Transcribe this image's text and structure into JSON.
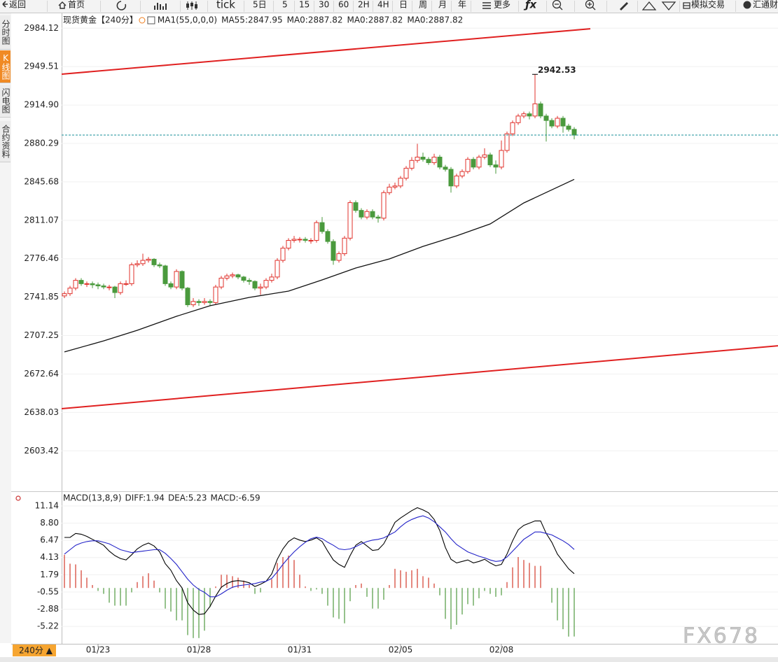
{
  "toolbar": {
    "items": [
      "返回",
      "首页",
      "tick",
      "5日",
      "5",
      "15",
      "30",
      "60",
      "2H",
      "4H",
      "日",
      "周",
      "月",
      "年",
      "更多",
      "ƒx",
      "模拟交易",
      "汇通财"
    ]
  },
  "sidebar": {
    "tabs": [
      "分时图",
      "K线图",
      "闪电图",
      "合约资料"
    ],
    "active": 1
  },
  "watermark": "FX678",
  "chart_data": [
    {
      "type": "candlestick",
      "title": "现货黄金",
      "period": "【240分】",
      "period_color": "#f07d1a",
      "indicator": "MA1(55,0,0,0)",
      "up_color": "#e0312b",
      "down_color": "#4a9a3d",
      "last_price_color": "#1a8f9a",
      "max_label_color": "#d9302a",
      "grid": true,
      "xlim": [
        -0.5,
        127.375
      ],
      "ylim": [
        2568.3,
        2996.9
      ],
      "yticks": [
        2984.12,
        2949.51,
        {
          "value": 2914.9,
          "label": "2914.90"
        },
        2880.29,
        2845.68,
        2811.07,
        2776.46,
        2741.85,
        2707.25,
        2672.64,
        2638.03,
        2603.42
      ],
      "open": [
        2743,
        2745,
        2750,
        2757,
        2754,
        2754,
        2753,
        2752,
        2751,
        2751,
        2746,
        2754,
        2754,
        2771,
        2772,
        2775,
        2776,
        2771,
        2770,
        2754,
        2751,
        2765,
        2750,
        2735,
        2738,
        2737,
        2738,
        2737,
        2751,
        2759,
        2761,
        2762,
        2760,
        2757,
        2756,
        2750,
        2751,
        2757,
        2760,
        2775,
        2786,
        2793,
        2794,
        2794,
        2793,
        2793,
        2809,
        2801,
        2792,
        2775,
        2781,
        2795,
        2827,
        2820,
        2814,
        2819,
        2814,
        2813,
        2836,
        2841,
        2842,
        2849,
        2858,
        2865,
        2868,
        2866,
        2863,
        2868,
        2859,
        2857,
        2842,
        2851,
        2855,
        2866,
        2859,
        2868,
        2870,
        2861,
        2859,
        2874,
        2889,
        2899,
        2905,
        2907,
        2905,
        2916,
        2905,
        2901,
        2896,
        2903,
        2896,
        2893
      ],
      "high": [
        2747,
        2752,
        2759,
        2759,
        2756,
        2756,
        2755,
        2754,
        2753,
        2752,
        2756,
        2757,
        2773,
        2775,
        2781,
        2778,
        2777,
        2773,
        2771,
        2756,
        2767,
        2766,
        2751,
        2741,
        2740,
        2741,
        2740,
        2753,
        2761,
        2763,
        2764,
        2763,
        2761,
        2759,
        2757,
        2754,
        2759,
        2763,
        2777,
        2788,
        2795,
        2797,
        2796,
        2796,
        2795,
        2811,
        2814,
        2803,
        2794,
        2783,
        2797,
        2829,
        2829,
        2822,
        2821,
        2821,
        2816,
        2838,
        2844,
        2845,
        2851,
        2860,
        2868,
        2880,
        2872,
        2868,
        2871,
        2870,
        2861,
        2859,
        2853,
        2857,
        2868,
        2868,
        2870,
        2876,
        2872,
        2865,
        2883,
        2891,
        2901,
        2907,
        2909,
        2909,
        2942.53,
        2918,
        2907,
        2903,
        2905,
        2905,
        2898,
        2895
      ],
      "low": [
        2741,
        2743,
        2748,
        2752,
        2751,
        2750,
        2749,
        2749,
        2748,
        2741,
        2744,
        2752,
        2752,
        2769,
        2770,
        2773,
        2769,
        2768,
        2752,
        2749,
        2749,
        2748,
        2733,
        2733,
        2734,
        2735,
        2734,
        2735,
        2749,
        2757,
        2759,
        2758,
        2755,
        2753,
        2748,
        2744,
        2749,
        2755,
        2758,
        2773,
        2784,
        2791,
        2791,
        2791,
        2790,
        2791,
        2799,
        2790,
        2771,
        2773,
        2779,
        2793,
        2818,
        2812,
        2812,
        2812,
        2809,
        2811,
        2834,
        2839,
        2840,
        2847,
        2856,
        2863,
        2864,
        2861,
        2861,
        2857,
        2855,
        2836,
        2840,
        2849,
        2853,
        2857,
        2857,
        2866,
        2859,
        2853,
        2857,
        2872,
        2887,
        2897,
        2903,
        2902,
        2903,
        2903,
        2882,
        2894,
        2894,
        2890,
        2891,
        2884
      ],
      "close": [
        2745,
        2750,
        2757,
        2754,
        2754,
        2753,
        2752,
        2751,
        2751,
        2746,
        2754,
        2754,
        2771,
        2772,
        2775,
        2776,
        2771,
        2770,
        2754,
        2751,
        2765,
        2750,
        2735,
        2738,
        2737,
        2738,
        2737,
        2751,
        2759,
        2761,
        2762,
        2760,
        2757,
        2756,
        2750,
        2751,
        2757,
        2760,
        2775,
        2786,
        2793,
        2794,
        2794,
        2793,
        2793,
        2809,
        2801,
        2792,
        2775,
        2781,
        2795,
        2827,
        2820,
        2814,
        2819,
        2814,
        2813,
        2836,
        2841,
        2842,
        2849,
        2858,
        2865,
        2868,
        2866,
        2863,
        2868,
        2859,
        2857,
        2842,
        2851,
        2855,
        2866,
        2859,
        2868,
        2870,
        2861,
        2859,
        2874,
        2889,
        2899,
        2905,
        2907,
        2905,
        2916,
        2905,
        2901,
        2896,
        2903,
        2896,
        2893,
        2887.82
      ],
      "series": [
        {
          "name": "MA55:2847.95",
          "color": "#111111",
          "x": [
            0,
            7,
            13,
            20,
            26,
            33,
            40,
            46,
            52,
            58,
            64,
            70,
            76,
            82,
            91
          ],
          "values": [
            2692.5,
            2702.5,
            2712.0,
            2724.6,
            2734.1,
            2741.6,
            2747.3,
            2757.4,
            2768.1,
            2776.3,
            2787.6,
            2797.1,
            2807.8,
            2826.7,
            2847.95
          ]
        }
      ],
      "extra_legend": [
        {
          "name": "MA0:2887.82",
          "color": "#2b2bd6"
        },
        {
          "name": "MA0:2887.82",
          "color": "#e020e0"
        },
        {
          "name": "MA0:2887.82",
          "color": "#f0a030"
        }
      ],
      "trend_lines": {
        "color": "#e02020",
        "lines": [
          {
            "x": [
              -0.5,
              93.875
            ],
            "values": [
              2942.7,
              2983.6
            ]
          },
          {
            "x": [
              -0.5,
              127.375
            ],
            "values": [
              2641.4,
              2698.1
            ]
          }
        ]
      }
    },
    {
      "type": "macd",
      "title": "MACD(13,8,9)",
      "grid": true,
      "xlim": [
        -0.5,
        127.375
      ],
      "ylim": [
        -7.58,
        12.56
      ],
      "yticks": [
        11.14,
        {
          "value": 8.8,
          "label": "8.80"
        },
        6.47,
        4.13,
        1.79,
        -0.55,
        -2.88,
        -5.22
      ],
      "xticks": [
        {
          "value": 6,
          "label": "01/23"
        },
        {
          "value": 24,
          "label": "01/28"
        },
        {
          "value": 42,
          "label": "01/31"
        },
        {
          "value": 60,
          "label": "02/05"
        },
        {
          "value": 78,
          "label": "02/08"
        }
      ],
      "series": [
        {
          "name": "DIFF:1.94",
          "color": "#000000",
          "values": [
            6.86,
            6.86,
            7.4,
            7.3,
            7.0,
            6.6,
            6.2,
            5.8,
            5.0,
            4.4,
            4.0,
            3.8,
            4.5,
            5.3,
            5.8,
            6.1,
            5.7,
            4.9,
            3.3,
            2.4,
            1.0,
            0.0,
            -2.0,
            -3.0,
            -3.6,
            -3.5,
            -2.5,
            -1.1,
            0.1,
            0.6,
            0.9,
            1.0,
            0.9,
            0.7,
            0.2,
            0.5,
            0.9,
            1.9,
            3.9,
            5.3,
            6.3,
            6.8,
            6.5,
            6.3,
            6.5,
            6.8,
            6.3,
            5.0,
            3.8,
            3.2,
            2.8,
            4.4,
            5.8,
            6.3,
            5.7,
            5.1,
            5.2,
            6.0,
            7.4,
            8.9,
            9.5,
            10.0,
            10.5,
            10.9,
            10.6,
            10.2,
            9.3,
            7.8,
            5.5,
            3.9,
            3.4,
            3.6,
            3.8,
            3.4,
            3.6,
            3.9,
            3.4,
            3.0,
            3.2,
            4.6,
            6.4,
            7.9,
            8.5,
            8.8,
            9.1,
            9.1,
            7.4,
            6.2,
            4.6,
            3.6,
            2.6,
            1.94
          ]
        },
        {
          "name": "DEA:5.23",
          "color": "#2323c8",
          "values": [
            4.6,
            5.2,
            5.8,
            6.1,
            6.3,
            6.4,
            6.4,
            6.2,
            6.0,
            5.6,
            5.2,
            5.0,
            4.8,
            4.9,
            5.0,
            5.1,
            5.2,
            5.2,
            4.7,
            4.0,
            3.2,
            2.2,
            1.2,
            0.4,
            -0.2,
            -0.6,
            -1.2,
            -1.2,
            -0.8,
            -0.3,
            0.1,
            0.3,
            0.4,
            0.5,
            0.6,
            0.8,
            0.9,
            1.3,
            2.2,
            3.2,
            4.1,
            4.9,
            5.6,
            6.2,
            6.7,
            6.9,
            6.7,
            6.2,
            5.8,
            5.3,
            5.2,
            5.3,
            5.6,
            6.0,
            6.3,
            6.5,
            6.6,
            6.8,
            7.2,
            7.6,
            8.3,
            8.9,
            9.3,
            9.6,
            9.8,
            9.5,
            9.0,
            8.3,
            7.6,
            6.7,
            5.9,
            5.4,
            4.9,
            4.6,
            4.3,
            4.1,
            3.8,
            3.6,
            3.7,
            4.2,
            5.0,
            5.8,
            6.6,
            7.1,
            7.6,
            7.6,
            7.4,
            7.2,
            6.8,
            6.4,
            5.9,
            5.23
          ]
        }
      ],
      "histogram": {
        "name": "MACD:-6.59",
        "color": "#e020e0",
        "up_color": "#d33a2c",
        "down_color": "#4f9a3f",
        "values": [
          4.5,
          3.3,
          3.2,
          2.4,
          1.4,
          0.4,
          -0.4,
          -0.8,
          -2.0,
          -2.4,
          -2.4,
          -2.4,
          -0.6,
          0.8,
          1.6,
          2.0,
          1.0,
          -0.6,
          -2.8,
          -3.2,
          -4.4,
          -4.4,
          -6.4,
          -6.8,
          -6.8,
          -5.8,
          -2.6,
          0.2,
          1.8,
          1.8,
          1.6,
          1.4,
          1.0,
          0.4,
          -0.8,
          -0.6,
          0.0,
          1.2,
          3.4,
          4.2,
          4.4,
          3.8,
          1.8,
          0.2,
          -0.4,
          -0.2,
          -0.8,
          -2.4,
          -4.0,
          -4.2,
          -4.8,
          -1.8,
          0.4,
          0.6,
          -1.2,
          -2.8,
          -2.8,
          -1.6,
          0.4,
          2.6,
          2.4,
          2.2,
          2.4,
          2.6,
          1.6,
          1.4,
          0.6,
          -1.0,
          -4.2,
          -5.6,
          -5.0,
          -3.6,
          -2.2,
          -2.4,
          -1.4,
          -0.4,
          -0.8,
          -1.2,
          -1.0,
          0.8,
          2.8,
          4.2,
          3.8,
          3.4,
          3.0,
          3.0,
          0.0,
          -2.0,
          -4.4,
          -5.6,
          -6.6,
          -6.59
        ]
      },
      "period_button": "240分 ▲"
    }
  ]
}
